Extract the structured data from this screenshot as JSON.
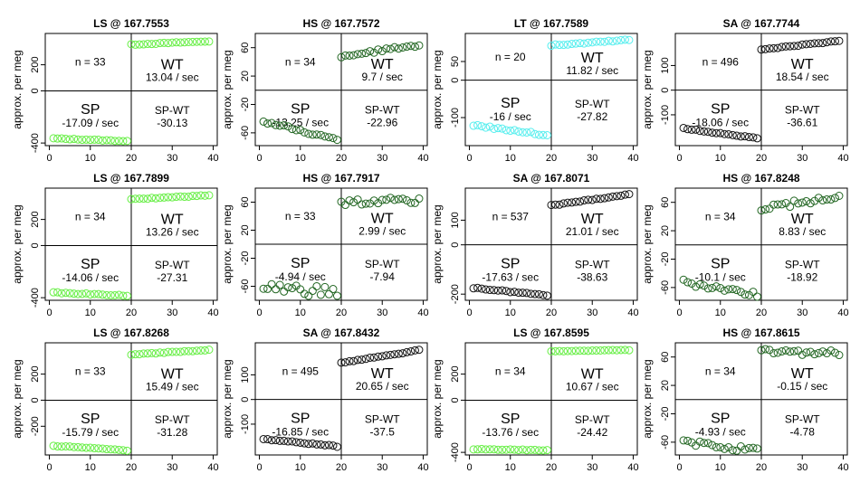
{
  "y_axis_label": "approx. per meg",
  "colors": {
    "LS": "#66ee44",
    "HS": "#226622",
    "LT": "#55eeee",
    "SA": "#111111"
  },
  "chart_data": [
    {
      "type": "scatter",
      "title": "LS @ 167.7553",
      "species": "LS",
      "n_label": "n = 33",
      "wt_label": "WT",
      "wt_rate": "13.04 / sec",
      "sp_label": "SP",
      "sp_rate": "-17.09 / sec",
      "diff_label": "SP-WT",
      "diff_value": "-30.13",
      "xlim": [
        -1,
        41
      ],
      "ylim": [
        -420,
        440
      ],
      "x_ticks": [
        0,
        10,
        20,
        30,
        40
      ],
      "y_ticks": [
        -400,
        0,
        200
      ],
      "sp": {
        "start": -365,
        "end": -385,
        "noise": 3
      },
      "wt": {
        "start": 355,
        "end": 380,
        "noise": 3
      }
    },
    {
      "type": "scatter",
      "title": "HS @ 167.7572",
      "species": "HS",
      "n_label": "n = 34",
      "wt_label": "WT",
      "wt_rate": "9.7 / sec",
      "sp_label": "SP",
      "sp_rate": "-13.25 / sec",
      "diff_label": "SP-WT",
      "diff_value": "-22.96",
      "xlim": [
        -1,
        41
      ],
      "ylim": [
        -78,
        80
      ],
      "x_ticks": [
        0,
        10,
        20,
        30,
        40
      ],
      "y_ticks": [
        -60,
        -20,
        20,
        60
      ],
      "sp": {
        "start": -44,
        "end": -70,
        "noise": 2
      },
      "wt": {
        "start": 48,
        "end": 64,
        "noise": 2
      }
    },
    {
      "type": "scatter",
      "title": "LT @ 167.7589",
      "species": "LT",
      "n_label": "n = 20",
      "wt_label": "WT",
      "wt_rate": "11.82 / sec",
      "sp_label": "SP",
      "sp_rate": "-16 / sec",
      "diff_label": "SP-WT",
      "diff_value": "-27.82",
      "xlim": [
        -1,
        41
      ],
      "ylim": [
        -175,
        125
      ],
      "x_ticks": [
        0,
        10,
        20,
        30,
        40
      ],
      "y_ticks": [
        -100,
        0,
        50
      ],
      "sp": {
        "start": -120,
        "end": -147,
        "noise": 3
      },
      "wt": {
        "start": 93,
        "end": 108,
        "noise": 2
      }
    },
    {
      "type": "scatter",
      "title": "SA @ 167.7744",
      "species": "SA",
      "n_label": "n = 496",
      "wt_label": "WT",
      "wt_rate": "18.54 / sec",
      "sp_label": "SP",
      "sp_rate": "-18.06 / sec",
      "diff_label": "SP-WT",
      "diff_value": "-36.61",
      "xlim": [
        -1,
        41
      ],
      "ylim": [
        -225,
        230
      ],
      "x_ticks": [
        0,
        10,
        20,
        30,
        40
      ],
      "y_ticks": [
        -100,
        0,
        100
      ],
      "sp": {
        "start": -155,
        "end": -195,
        "noise": 2
      },
      "wt": {
        "start": 165,
        "end": 200,
        "noise": 2
      }
    },
    {
      "type": "scatter",
      "title": "LS @ 167.7899",
      "species": "LS",
      "n_label": "n = 34",
      "wt_label": "WT",
      "wt_rate": "13.26 / sec",
      "sp_label": "SP",
      "sp_rate": "-14.06 / sec",
      "diff_label": "SP-WT",
      "diff_value": "-27.31",
      "xlim": [
        -1,
        41
      ],
      "ylim": [
        -420,
        440
      ],
      "x_ticks": [
        0,
        10,
        20,
        30,
        40
      ],
      "y_ticks": [
        -400,
        0,
        200
      ],
      "sp": {
        "start": -360,
        "end": -385,
        "noise": 4
      },
      "wt": {
        "start": 355,
        "end": 385,
        "noise": 3
      }
    },
    {
      "type": "scatter",
      "title": "HS @ 167.7917",
      "species": "HS",
      "n_label": "n = 33",
      "wt_label": "WT",
      "wt_rate": "2.99 / sec",
      "sp_label": "SP",
      "sp_rate": "-4.94 / sec",
      "diff_label": "SP-WT",
      "diff_value": "-7.94",
      "xlim": [
        -1,
        41
      ],
      "ylim": [
        -80,
        80
      ],
      "x_ticks": [
        0,
        10,
        20,
        30,
        40
      ],
      "y_ticks": [
        -60,
        -20,
        20,
        60
      ],
      "sp": {
        "start": -62,
        "end": -70,
        "noise": 8
      },
      "wt": {
        "start": 58,
        "end": 64,
        "noise": 5
      }
    },
    {
      "type": "scatter",
      "title": "SA @ 167.8071",
      "species": "SA",
      "n_label": "n = 537",
      "wt_label": "WT",
      "wt_rate": "21.01 / sec",
      "sp_label": "SP",
      "sp_rate": "-17.63 / sec",
      "diff_label": "SP-WT",
      "diff_value": "-38.63",
      "xlim": [
        -1,
        41
      ],
      "ylim": [
        -225,
        230
      ],
      "x_ticks": [
        0,
        10,
        20,
        30,
        40
      ],
      "y_ticks": [
        -200,
        0,
        100
      ],
      "sp": {
        "start": -175,
        "end": -205,
        "noise": 2
      },
      "wt": {
        "start": 160,
        "end": 205,
        "noise": 2
      }
    },
    {
      "type": "scatter",
      "title": "HS @ 167.8248",
      "species": "HS",
      "n_label": "n = 34",
      "wt_label": "WT",
      "wt_rate": "8.83 / sec",
      "sp_label": "SP",
      "sp_rate": "-10.1 / sec",
      "diff_label": "SP-WT",
      "diff_value": "-18.92",
      "xlim": [
        -1,
        41
      ],
      "ylim": [
        -78,
        80
      ],
      "x_ticks": [
        0,
        10,
        20,
        30,
        40
      ],
      "y_ticks": [
        -60,
        -20,
        20,
        60
      ],
      "sp": {
        "start": -52,
        "end": -70,
        "noise": 4
      },
      "wt": {
        "start": 52,
        "end": 67,
        "noise": 4
      }
    },
    {
      "type": "scatter",
      "title": "LS @ 167.8268",
      "species": "LS",
      "n_label": "n = 33",
      "wt_label": "WT",
      "wt_rate": "15.49 / sec",
      "sp_label": "SP",
      "sp_rate": "-15.79 / sec",
      "diff_label": "SP-WT",
      "diff_value": "-31.28",
      "xlim": [
        -1,
        41
      ],
      "ylim": [
        -420,
        440
      ],
      "x_ticks": [
        0,
        10,
        20,
        30,
        40
      ],
      "y_ticks": [
        -200,
        0,
        200
      ],
      "sp": {
        "start": -350,
        "end": -385,
        "noise": 3
      },
      "wt": {
        "start": 350,
        "end": 385,
        "noise": 3
      }
    },
    {
      "type": "scatter",
      "title": "SA @ 167.8432",
      "species": "SA",
      "n_label": "n = 495",
      "wt_label": "WT",
      "wt_rate": "20.65 / sec",
      "sp_label": "SP",
      "sp_rate": "-16.85 / sec",
      "diff_label": "SP-WT",
      "diff_value": "-37.5",
      "xlim": [
        -1,
        41
      ],
      "ylim": [
        -225,
        230
      ],
      "x_ticks": [
        0,
        10,
        20,
        30,
        40
      ],
      "y_ticks": [
        -100,
        0,
        100
      ],
      "sp": {
        "start": -160,
        "end": -190,
        "noise": 2
      },
      "wt": {
        "start": 150,
        "end": 200,
        "noise": 2
      }
    },
    {
      "type": "scatter",
      "title": "LS @ 167.8595",
      "species": "LS",
      "n_label": "n = 34",
      "wt_label": "WT",
      "wt_rate": "10.67 / sec",
      "sp_label": "SP",
      "sp_rate": "-13.76 / sec",
      "diff_label": "SP-WT",
      "diff_value": "-24.42",
      "xlim": [
        -1,
        41
      ],
      "ylim": [
        -420,
        440
      ],
      "x_ticks": [
        0,
        10,
        20,
        30,
        40
      ],
      "y_ticks": [
        -400,
        0,
        200
      ],
      "sp": {
        "start": -375,
        "end": -385,
        "noise": 3
      },
      "wt": {
        "start": 375,
        "end": 385,
        "noise": 2
      }
    },
    {
      "type": "scatter",
      "title": "HS @ 167.8615",
      "species": "HS",
      "n_label": "n = 34",
      "wt_label": "WT",
      "wt_rate": "-0.15 / sec",
      "sp_label": "SP",
      "sp_rate": "-4.93 / sec",
      "diff_label": "SP-WT",
      "diff_value": "-4.78",
      "xlim": [
        -1,
        41
      ],
      "ylim": [
        -78,
        80
      ],
      "x_ticks": [
        0,
        10,
        20,
        30,
        40
      ],
      "y_ticks": [
        -60,
        -20,
        20,
        60
      ],
      "sp": {
        "start": -60,
        "end": -72,
        "noise": 4
      },
      "wt": {
        "start": 68,
        "end": 66,
        "noise": 4
      }
    }
  ]
}
